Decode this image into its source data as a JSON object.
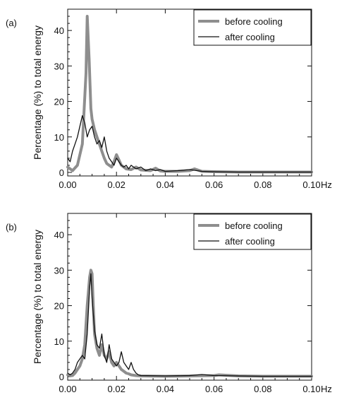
{
  "colors": {
    "before": "#8e8e8e",
    "after": "#111111",
    "axis": "#111111"
  },
  "chart_data": [
    {
      "type": "line",
      "panel_label": "(a)",
      "xlabel": "",
      "x_unit": "Hz",
      "ylabel": "Percentage (%) to total energy",
      "xlim": [
        0,
        0.1
      ],
      "ylim": [
        -1,
        46
      ],
      "xticks": [
        "0.00",
        "0.02",
        "0.04",
        "0.06",
        "0.08",
        "0.10"
      ],
      "yticks": [
        "0",
        "10",
        "20",
        "30",
        "40"
      ],
      "legend_position": "top-right",
      "series": [
        {
          "name": "before cooling",
          "color": "#8e8e8e",
          "style": "thick",
          "points": [
            [
              0.0,
              1.5
            ],
            [
              0.002,
              0.5
            ],
            [
              0.004,
              2
            ],
            [
              0.006,
              8
            ],
            [
              0.0075,
              28
            ],
            [
              0.008,
              44
            ],
            [
              0.0088,
              32
            ],
            [
              0.0095,
              18
            ],
            [
              0.01,
              15
            ],
            [
              0.011,
              12
            ],
            [
              0.012,
              10
            ],
            [
              0.013,
              8
            ],
            [
              0.014,
              6
            ],
            [
              0.015,
              4
            ],
            [
              0.016,
              2.5
            ],
            [
              0.017,
              2
            ],
            [
              0.018,
              1.5
            ],
            [
              0.019,
              3
            ],
            [
              0.02,
              5
            ],
            [
              0.021,
              3.5
            ],
            [
              0.022,
              2
            ],
            [
              0.024,
              1
            ],
            [
              0.026,
              0.8
            ],
            [
              0.028,
              1.5
            ],
            [
              0.03,
              0.7
            ],
            [
              0.032,
              0.6
            ],
            [
              0.034,
              0.5
            ],
            [
              0.036,
              1.2
            ],
            [
              0.038,
              0.4
            ],
            [
              0.04,
              0.3
            ],
            [
              0.045,
              0.3
            ],
            [
              0.05,
              0.5
            ],
            [
              0.052,
              1
            ],
            [
              0.055,
              0.3
            ],
            [
              0.06,
              0.2
            ],
            [
              0.07,
              0.1
            ],
            [
              0.08,
              0.1
            ],
            [
              0.09,
              0.1
            ],
            [
              0.1,
              0.1
            ]
          ]
        },
        {
          "name": "after cooling",
          "color": "#111111",
          "style": "thin",
          "points": [
            [
              0.0,
              4
            ],
            [
              0.001,
              3
            ],
            [
              0.002,
              6
            ],
            [
              0.003,
              8
            ],
            [
              0.004,
              10
            ],
            [
              0.005,
              13
            ],
            [
              0.006,
              16
            ],
            [
              0.007,
              14
            ],
            [
              0.008,
              10
            ],
            [
              0.009,
              12
            ],
            [
              0.01,
              13
            ],
            [
              0.011,
              10
            ],
            [
              0.012,
              8
            ],
            [
              0.013,
              9
            ],
            [
              0.014,
              7
            ],
            [
              0.015,
              10
            ],
            [
              0.016,
              6
            ],
            [
              0.017,
              4
            ],
            [
              0.018,
              3
            ],
            [
              0.019,
              2
            ],
            [
              0.02,
              4
            ],
            [
              0.021,
              3
            ],
            [
              0.022,
              2
            ],
            [
              0.023,
              1.5
            ],
            [
              0.024,
              2
            ],
            [
              0.025,
              1
            ],
            [
              0.026,
              2
            ],
            [
              0.027,
              1.5
            ],
            [
              0.028,
              1
            ],
            [
              0.03,
              1.5
            ],
            [
              0.032,
              0.5
            ],
            [
              0.034,
              1
            ],
            [
              0.036,
              0.5
            ],
            [
              0.038,
              0.8
            ],
            [
              0.04,
              0.3
            ],
            [
              0.045,
              0.5
            ],
            [
              0.05,
              0.8
            ],
            [
              0.055,
              0.3
            ],
            [
              0.06,
              0.2
            ],
            [
              0.07,
              0.1
            ],
            [
              0.08,
              0.1
            ],
            [
              0.09,
              0.1
            ],
            [
              0.1,
              0.1
            ]
          ]
        }
      ]
    },
    {
      "type": "line",
      "panel_label": "(b)",
      "xlabel": "",
      "x_unit": "Hz",
      "ylabel": "Percentage (%) to total energy",
      "xlim": [
        0,
        0.1
      ],
      "ylim": [
        -1,
        46
      ],
      "xticks": [
        "0.00",
        "0.02",
        "0.04",
        "0.06",
        "0.08",
        "0.10"
      ],
      "yticks": [
        "0",
        "10",
        "20",
        "30",
        "40"
      ],
      "legend_position": "top-right",
      "series": [
        {
          "name": "before cooling",
          "color": "#8e8e8e",
          "style": "thick",
          "points": [
            [
              0.0,
              0.5
            ],
            [
              0.002,
              0.3
            ],
            [
              0.003,
              1
            ],
            [
              0.004,
              2
            ],
            [
              0.005,
              3
            ],
            [
              0.006,
              5
            ],
            [
              0.007,
              9
            ],
            [
              0.008,
              20
            ],
            [
              0.009,
              28
            ],
            [
              0.0095,
              30
            ],
            [
              0.01,
              29
            ],
            [
              0.0105,
              20
            ],
            [
              0.011,
              12
            ],
            [
              0.012,
              8
            ],
            [
              0.013,
              6
            ],
            [
              0.014,
              9
            ],
            [
              0.015,
              6
            ],
            [
              0.016,
              5
            ],
            [
              0.017,
              7
            ],
            [
              0.018,
              4
            ],
            [
              0.019,
              3
            ],
            [
              0.02,
              4
            ],
            [
              0.021,
              3
            ],
            [
              0.022,
              2
            ],
            [
              0.023,
              1.5
            ],
            [
              0.024,
              1
            ],
            [
              0.025,
              0.8
            ],
            [
              0.026,
              0.5
            ],
            [
              0.028,
              0.3
            ],
            [
              0.03,
              0.2
            ],
            [
              0.04,
              0.1
            ],
            [
              0.05,
              0.2
            ],
            [
              0.06,
              0.3
            ],
            [
              0.062,
              0.5
            ],
            [
              0.07,
              0.2
            ],
            [
              0.08,
              0.1
            ],
            [
              0.09,
              0.1
            ],
            [
              0.1,
              0.1
            ]
          ]
        },
        {
          "name": "after cooling",
          "color": "#111111",
          "style": "thin",
          "points": [
            [
              0.0,
              1
            ],
            [
              0.001,
              0.5
            ],
            [
              0.002,
              1
            ],
            [
              0.003,
              2
            ],
            [
              0.004,
              4
            ],
            [
              0.005,
              5
            ],
            [
              0.006,
              6
            ],
            [
              0.007,
              5
            ],
            [
              0.008,
              12
            ],
            [
              0.009,
              25
            ],
            [
              0.0095,
              29
            ],
            [
              0.01,
              22
            ],
            [
              0.011,
              13
            ],
            [
              0.012,
              9
            ],
            [
              0.013,
              8
            ],
            [
              0.014,
              12
            ],
            [
              0.015,
              6
            ],
            [
              0.016,
              4
            ],
            [
              0.017,
              9
            ],
            [
              0.018,
              5
            ],
            [
              0.019,
              4
            ],
            [
              0.02,
              3
            ],
            [
              0.021,
              4
            ],
            [
              0.022,
              7
            ],
            [
              0.023,
              4
            ],
            [
              0.024,
              3
            ],
            [
              0.025,
              2
            ],
            [
              0.026,
              4
            ],
            [
              0.027,
              2
            ],
            [
              0.028,
              1
            ],
            [
              0.029,
              0.5
            ],
            [
              0.03,
              0.3
            ],
            [
              0.04,
              0.2
            ],
            [
              0.05,
              0.3
            ],
            [
              0.055,
              0.6
            ],
            [
              0.06,
              0.3
            ],
            [
              0.07,
              0.2
            ],
            [
              0.08,
              0.1
            ],
            [
              0.09,
              0.1
            ],
            [
              0.1,
              0.1
            ]
          ]
        }
      ]
    }
  ]
}
